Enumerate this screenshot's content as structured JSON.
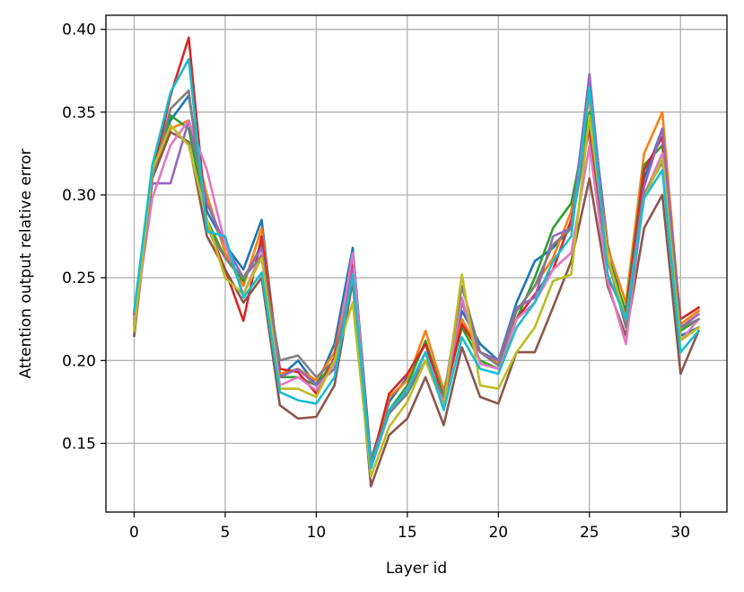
{
  "chart_data": {
    "type": "line",
    "title": "",
    "xlabel": "Layer id",
    "ylabel": "Attention output relative error",
    "xlim": [
      -1.55,
      32.55
    ],
    "ylim": [
      0.1085,
      0.4085
    ],
    "xticks": [
      0,
      5,
      10,
      15,
      20,
      25,
      30
    ],
    "xtick_labels": [
      "0",
      "5",
      "10",
      "15",
      "20",
      "25",
      "30"
    ],
    "yticks": [
      0.15,
      0.2,
      0.25,
      0.3,
      0.35,
      0.4
    ],
    "ytick_labels": [
      "0.15",
      "0.20",
      "0.25",
      "0.30",
      "0.35",
      "0.40"
    ],
    "grid": true,
    "legend": "none",
    "x": [
      0,
      1,
      2,
      3,
      4,
      5,
      6,
      7,
      8,
      9,
      10,
      11,
      12,
      13,
      14,
      15,
      16,
      17,
      18,
      19,
      20,
      21,
      22,
      23,
      24,
      25,
      26,
      27,
      28,
      29,
      30,
      31
    ],
    "series": [
      {
        "color": "#1f77b4",
        "values": [
          0.215,
          0.318,
          0.345,
          0.36,
          0.29,
          0.27,
          0.255,
          0.285,
          0.19,
          0.2,
          0.185,
          0.21,
          0.268,
          0.14,
          0.175,
          0.19,
          0.21,
          0.18,
          0.23,
          0.21,
          0.2,
          0.235,
          0.26,
          0.268,
          0.28,
          0.365,
          0.27,
          0.225,
          0.31,
          0.34,
          0.215,
          0.22
        ]
      },
      {
        "color": "#ff7f0e",
        "values": [
          0.222,
          0.31,
          0.34,
          0.345,
          0.3,
          0.265,
          0.245,
          0.28,
          0.192,
          0.195,
          0.188,
          0.205,
          0.26,
          0.135,
          0.178,
          0.188,
          0.218,
          0.182,
          0.225,
          0.205,
          0.198,
          0.23,
          0.245,
          0.262,
          0.29,
          0.36,
          0.268,
          0.235,
          0.325,
          0.35,
          0.222,
          0.23
        ]
      },
      {
        "color": "#2ca02c",
        "values": [
          0.218,
          0.315,
          0.348,
          0.34,
          0.285,
          0.262,
          0.248,
          0.27,
          0.19,
          0.19,
          0.185,
          0.2,
          0.255,
          0.138,
          0.17,
          0.185,
          0.212,
          0.178,
          0.22,
          0.2,
          0.195,
          0.225,
          0.25,
          0.28,
          0.295,
          0.35,
          0.262,
          0.23,
          0.318,
          0.33,
          0.218,
          0.225
        ]
      },
      {
        "color": "#d62728",
        "values": [
          0.228,
          0.312,
          0.36,
          0.395,
          0.282,
          0.255,
          0.224,
          0.275,
          0.195,
          0.193,
          0.18,
          0.202,
          0.26,
          0.137,
          0.18,
          0.192,
          0.21,
          0.176,
          0.222,
          0.205,
          0.2,
          0.225,
          0.24,
          0.255,
          0.285,
          0.34,
          0.25,
          0.228,
          0.315,
          0.335,
          0.225,
          0.232
        ]
      },
      {
        "color": "#9467bd",
        "values": [
          0.225,
          0.307,
          0.307,
          0.345,
          0.295,
          0.27,
          0.25,
          0.268,
          0.19,
          0.195,
          0.185,
          0.195,
          0.255,
          0.135,
          0.17,
          0.18,
          0.205,
          0.175,
          0.235,
          0.205,
          0.2,
          0.232,
          0.238,
          0.275,
          0.28,
          0.373,
          0.26,
          0.225,
          0.305,
          0.34,
          0.22,
          0.228
        ]
      },
      {
        "color": "#8c564b",
        "values": [
          0.215,
          0.31,
          0.338,
          0.332,
          0.275,
          0.255,
          0.235,
          0.25,
          0.173,
          0.165,
          0.166,
          0.185,
          0.248,
          0.124,
          0.155,
          0.165,
          0.19,
          0.161,
          0.208,
          0.178,
          0.174,
          0.205,
          0.205,
          0.232,
          0.26,
          0.31,
          0.245,
          0.215,
          0.28,
          0.3,
          0.192,
          0.218
        ]
      },
      {
        "color": "#e377c2",
        "values": [
          0.223,
          0.298,
          0.33,
          0.345,
          0.315,
          0.27,
          0.24,
          0.265,
          0.185,
          0.19,
          0.182,
          0.198,
          0.265,
          0.135,
          0.168,
          0.183,
          0.205,
          0.175,
          0.238,
          0.198,
          0.195,
          0.225,
          0.235,
          0.255,
          0.265,
          0.33,
          0.248,
          0.21,
          0.3,
          0.325,
          0.212,
          0.225
        ]
      },
      {
        "color": "#7f7f7f",
        "values": [
          0.22,
          0.31,
          0.352,
          0.363,
          0.28,
          0.262,
          0.25,
          0.263,
          0.2,
          0.203,
          0.19,
          0.2,
          0.25,
          0.14,
          0.168,
          0.18,
          0.2,
          0.178,
          0.245,
          0.205,
          0.197,
          0.23,
          0.245,
          0.27,
          0.28,
          0.345,
          0.262,
          0.22,
          0.3,
          0.32,
          0.22,
          0.225
        ]
      },
      {
        "color": "#bcbd22",
        "values": [
          0.218,
          0.315,
          0.342,
          0.33,
          0.285,
          0.25,
          0.24,
          0.262,
          0.183,
          0.183,
          0.178,
          0.2,
          0.235,
          0.13,
          0.16,
          0.175,
          0.2,
          0.172,
          0.252,
          0.185,
          0.183,
          0.205,
          0.22,
          0.248,
          0.252,
          0.348,
          0.262,
          0.225,
          0.298,
          0.322,
          0.212,
          0.22
        ]
      },
      {
        "color": "#17becf",
        "values": [
          0.23,
          0.318,
          0.362,
          0.382,
          0.278,
          0.275,
          0.238,
          0.253,
          0.181,
          0.176,
          0.174,
          0.19,
          0.252,
          0.135,
          0.17,
          0.182,
          0.205,
          0.17,
          0.214,
          0.195,
          0.192,
          0.22,
          0.235,
          0.26,
          0.275,
          0.365,
          0.252,
          0.225,
          0.298,
          0.315,
          0.205,
          0.218
        ]
      }
    ]
  }
}
